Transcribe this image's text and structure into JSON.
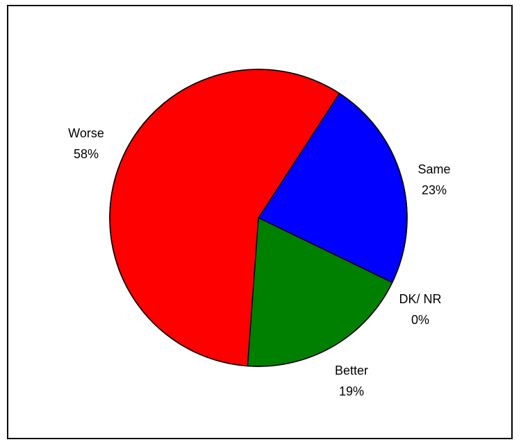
{
  "chart_data": {
    "type": "pie",
    "title": "",
    "slices": [
      {
        "label": "Same",
        "value": 23,
        "value_label": "23%",
        "color": "#0000FF"
      },
      {
        "label": "DK/ NR",
        "value": 0,
        "value_label": "0%",
        "color": "#FFFF00"
      },
      {
        "label": "Better",
        "value": 19,
        "value_label": "19%",
        "color": "#008000"
      },
      {
        "label": "Worse",
        "value": 58,
        "value_label": "58%",
        "color": "#FF0000"
      }
    ],
    "legend": "none",
    "start_angle_from_top_deg": 33
  }
}
